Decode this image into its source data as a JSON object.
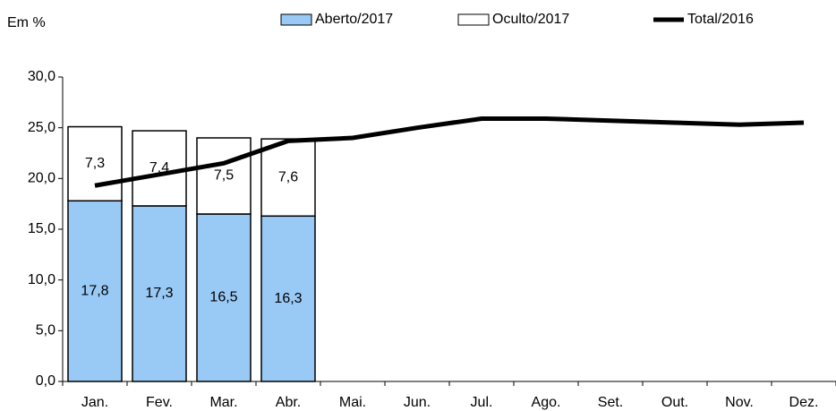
{
  "chart_data": {
    "type": "bar",
    "stacked": true,
    "y_label": "Em %",
    "categories": [
      "Jan.",
      "Fev.",
      "Mar.",
      "Abr.",
      "Mai.",
      "Jun.",
      "Jul.",
      "Ago.",
      "Set.",
      "Out.",
      "Nov.",
      "Dez."
    ],
    "series": [
      {
        "name": "Aberto/2017",
        "type": "bar",
        "color": "#99c9f5",
        "values": [
          17.8,
          17.3,
          16.5,
          16.3,
          null,
          null,
          null,
          null,
          null,
          null,
          null,
          null
        ],
        "value_labels": [
          "17,8",
          "17,3",
          "16,5",
          "16,3",
          null,
          null,
          null,
          null,
          null,
          null,
          null,
          null
        ]
      },
      {
        "name": "Oculto/2017",
        "type": "bar",
        "color": "#ffffff",
        "values": [
          7.3,
          7.4,
          7.5,
          7.6,
          null,
          null,
          null,
          null,
          null,
          null,
          null,
          null
        ],
        "value_labels": [
          "7,3",
          "7,4",
          "7,5",
          "7,6",
          null,
          null,
          null,
          null,
          null,
          null,
          null,
          null
        ]
      },
      {
        "name": "Total/2016",
        "type": "line",
        "color": "#000000",
        "values": [
          19.3,
          20.4,
          21.5,
          23.7,
          24.0,
          25.0,
          25.9,
          25.9,
          25.7,
          25.5,
          25.3,
          25.5
        ]
      }
    ],
    "ylim": [
      0,
      30
    ],
    "yticks": [
      {
        "value": 0,
        "label": "0,0"
      },
      {
        "value": 5,
        "label": "5,0"
      },
      {
        "value": 10,
        "label": "10,0"
      },
      {
        "value": 15,
        "label": "15,0"
      },
      {
        "value": 20,
        "label": "20,0"
      },
      {
        "value": 25,
        "label": "25,0"
      },
      {
        "value": 30,
        "label": "30,0"
      }
    ],
    "grid": false,
    "legend": "top"
  }
}
